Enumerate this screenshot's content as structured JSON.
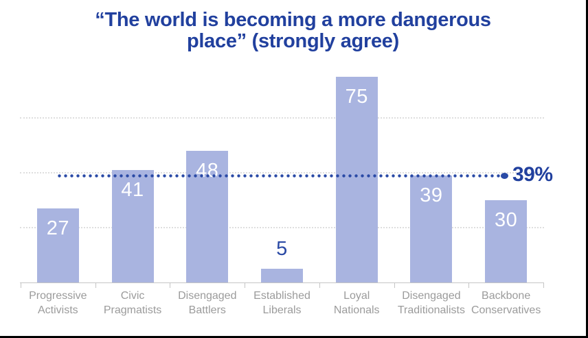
{
  "chart_data": {
    "type": "bar",
    "title": "“The world is becoming a more dangerous place” (strongly agree)",
    "title_display": "“The world is becoming a more dangerous\nplace” (strongly agree)",
    "categories": [
      "Progressive Activists",
      "Civic Pragmatists",
      "Disengaged Battlers",
      "Established Liberals",
      "Loyal Nationals",
      "Disengaged Traditionalists",
      "Backbone Conservatives"
    ],
    "categories_display": [
      "Progressive\nActivists",
      "Civic\nPragmatists",
      "Disengaged\nBattlers",
      "Established\nLiberals",
      "Loyal\nNationals",
      "Disengaged\nTraditionalists",
      "Backbone\nConservatives"
    ],
    "values": [
      27,
      41,
      48,
      5,
      75,
      39,
      30
    ],
    "ylim": [
      0,
      80
    ],
    "gridline_values": [
      20,
      40,
      60
    ],
    "grid_on": true,
    "legend": null,
    "xlabel": "",
    "ylabel": "",
    "reference_line": {
      "value": 39,
      "label": "39%"
    },
    "colors": {
      "bar": "#a9b4e0",
      "title": "#21409e",
      "value_inside": "#ffffff",
      "value_outside": "#2b4aa5",
      "reference": "#2a4aa6",
      "reference_label": "#21409e",
      "axis_label": "#9b9b9b",
      "gridline": "#dedede",
      "axis_line": "#c5c5c5"
    }
  }
}
